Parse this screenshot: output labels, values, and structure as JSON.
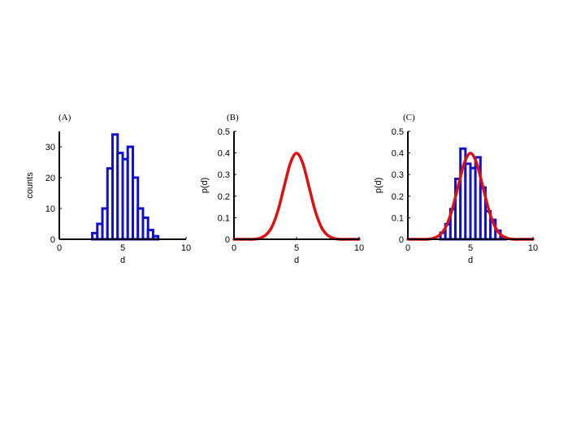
{
  "chart_data": [
    {
      "panel_label": "(A)",
      "type": "bar",
      "xlabel": "d",
      "ylabel": "counts",
      "xlim": [
        0,
        10
      ],
      "ylim": [
        0,
        35
      ],
      "xticks": [
        "0",
        "5",
        "10"
      ],
      "yticks": [
        "0",
        "10",
        "20",
        "30"
      ],
      "bar_color": "#1010d0",
      "bin_width": 0.4,
      "bin_starts": [
        2.6,
        3.0,
        3.4,
        3.8,
        4.2,
        4.6,
        5.0,
        5.4,
        5.8,
        6.2,
        6.6,
        7.0,
        7.4
      ],
      "values": [
        2,
        5,
        10,
        23,
        34,
        28,
        26,
        30,
        20,
        10,
        7,
        3,
        1
      ]
    },
    {
      "panel_label": "(B)",
      "type": "line",
      "xlabel": "d",
      "ylabel": "p(d)",
      "xlim": [
        0,
        10
      ],
      "ylim": [
        0,
        0.5
      ],
      "xticks": [
        "0",
        "5",
        "10"
      ],
      "yticks": [
        "0",
        "0.1",
        "0.2",
        "0.3",
        "0.4",
        "0.5"
      ],
      "line_color": "#e01010",
      "series": [
        {
          "x": [
            0.0,
            0.5,
            1.0,
            1.5,
            2.0,
            2.5,
            3.0,
            3.5,
            4.0,
            4.5,
            5.0,
            5.5,
            6.0,
            6.5,
            7.0,
            7.5,
            8.0,
            8.5,
            9.0,
            9.5,
            10.0
          ],
          "y": [
            0.0,
            0.0,
            0.0,
            0.0,
            0.004,
            0.018,
            0.054,
            0.13,
            0.242,
            0.352,
            0.399,
            0.352,
            0.242,
            0.13,
            0.054,
            0.018,
            0.004,
            0.0,
            0.0,
            0.0,
            0.0
          ]
        }
      ]
    },
    {
      "panel_label": "(C)",
      "type": "bar",
      "xlabel": "d",
      "ylabel": "p(d)",
      "xlim": [
        0,
        10
      ],
      "ylim": [
        0,
        0.5
      ],
      "xticks": [
        "0",
        "5",
        "10"
      ],
      "yticks": [
        "0",
        "0.1",
        "0.2",
        "0.3",
        "0.4",
        "0.5"
      ],
      "bar_color": "#1010d0",
      "line_color": "#e01010",
      "bin_width": 0.4,
      "bin_starts": [
        2.6,
        3.0,
        3.4,
        3.8,
        4.2,
        4.6,
        5.0,
        5.4,
        5.8,
        6.2,
        6.6,
        7.0,
        7.4
      ],
      "values": [
        0.03,
        0.07,
        0.14,
        0.28,
        0.42,
        0.35,
        0.33,
        0.38,
        0.24,
        0.13,
        0.09,
        0.04,
        0.01
      ],
      "series": [
        {
          "x": [
            0.0,
            0.5,
            1.0,
            1.5,
            2.0,
            2.5,
            3.0,
            3.5,
            4.0,
            4.5,
            5.0,
            5.5,
            6.0,
            6.5,
            7.0,
            7.5,
            8.0,
            8.5,
            9.0,
            9.5,
            10.0
          ],
          "y": [
            0.0,
            0.0,
            0.0,
            0.0,
            0.004,
            0.018,
            0.054,
            0.13,
            0.242,
            0.352,
            0.399,
            0.352,
            0.242,
            0.13,
            0.054,
            0.018,
            0.004,
            0.0,
            0.0,
            0.0,
            0.0
          ]
        }
      ]
    }
  ]
}
